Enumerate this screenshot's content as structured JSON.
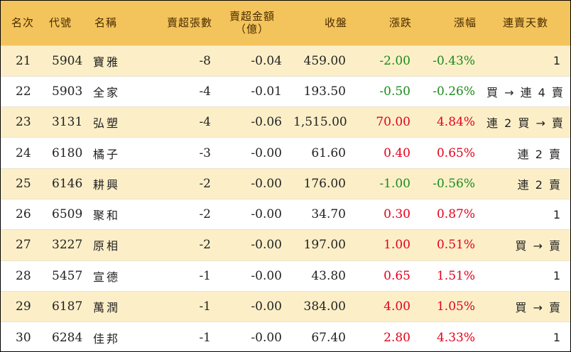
{
  "header": {
    "rank": "名次",
    "code": "代號",
    "name": "名稱",
    "net_sell_lots": "賣超張數",
    "net_sell_amount_line1": "賣超金額",
    "net_sell_amount_line2": "（億）",
    "close": "收盤",
    "change": "漲跌",
    "change_pct": "漲幅",
    "consecutive_days": "連賣天數"
  },
  "colors": {
    "up": "#e3001a",
    "down": "#1b8a1b",
    "header_bg": "#f3c45c",
    "stripe": "#fcefc8"
  },
  "rows": [
    {
      "rank": "21",
      "code": "5904",
      "name": "寶雅",
      "lots": "-8",
      "amount": "-0.04",
      "close": "459.00",
      "change": "-2.00",
      "pct": "-0.43%",
      "direction": "down",
      "days": "1"
    },
    {
      "rank": "22",
      "code": "5903",
      "name": "全家",
      "lots": "-4",
      "amount": "-0.01",
      "close": "193.50",
      "change": "-0.50",
      "pct": "-0.26%",
      "direction": "down",
      "days": "買 → 連 4 賣"
    },
    {
      "rank": "23",
      "code": "3131",
      "name": "弘塑",
      "lots": "-4",
      "amount": "-0.06",
      "close": "1,515.00",
      "change": "70.00",
      "pct": "4.84%",
      "direction": "up",
      "days": "連 2 買 → 賣"
    },
    {
      "rank": "24",
      "code": "6180",
      "name": "橘子",
      "lots": "-3",
      "amount": "-0.00",
      "close": "61.60",
      "change": "0.40",
      "pct": "0.65%",
      "direction": "up",
      "days": "連 2 賣"
    },
    {
      "rank": "25",
      "code": "6146",
      "name": "耕興",
      "lots": "-2",
      "amount": "-0.00",
      "close": "176.00",
      "change": "-1.00",
      "pct": "-0.56%",
      "direction": "down",
      "days": "連 2 賣"
    },
    {
      "rank": "26",
      "code": "6509",
      "name": "聚和",
      "lots": "-2",
      "amount": "-0.00",
      "close": "34.70",
      "change": "0.30",
      "pct": "0.87%",
      "direction": "up",
      "days": "1"
    },
    {
      "rank": "27",
      "code": "3227",
      "name": "原相",
      "lots": "-2",
      "amount": "-0.00",
      "close": "197.00",
      "change": "1.00",
      "pct": "0.51%",
      "direction": "up",
      "days": "買 → 賣"
    },
    {
      "rank": "28",
      "code": "5457",
      "name": "宣德",
      "lots": "-1",
      "amount": "-0.00",
      "close": "43.80",
      "change": "0.65",
      "pct": "1.51%",
      "direction": "up",
      "days": "1"
    },
    {
      "rank": "29",
      "code": "6187",
      "name": "萬潤",
      "lots": "-1",
      "amount": "-0.00",
      "close": "384.00",
      "change": "4.00",
      "pct": "1.05%",
      "direction": "up",
      "days": "買 → 賣"
    },
    {
      "rank": "30",
      "code": "6284",
      "name": "佳邦",
      "lots": "-1",
      "amount": "-0.00",
      "close": "67.40",
      "change": "2.80",
      "pct": "4.33%",
      "direction": "up",
      "days": "1"
    }
  ]
}
